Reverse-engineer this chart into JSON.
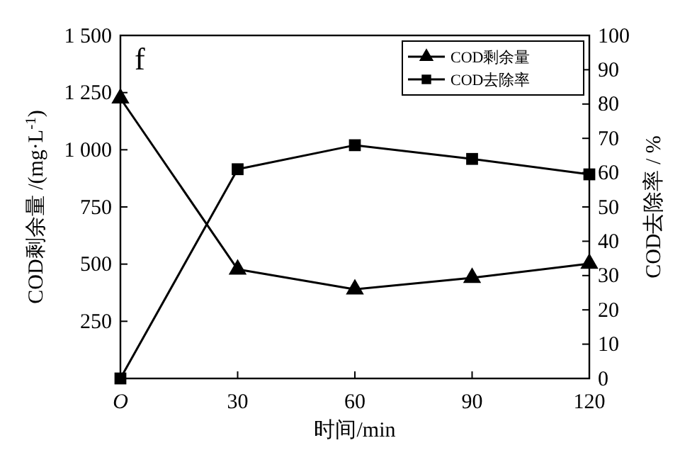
{
  "chart_data": {
    "type": "line",
    "xlabel": "时间/min",
    "ylabel": "COD剩余量 /(mg·L$^{-1}$)",
    "y2label": "COD去除率 / %",
    "annotations": [
      "f"
    ],
    "x": [
      0,
      30,
      60,
      90,
      120
    ],
    "xlim": [
      0,
      120
    ],
    "xticks": [
      {
        "value": 0,
        "label": "O"
      },
      30,
      60,
      90,
      120
    ],
    "ylim": [
      0,
      1500
    ],
    "yticks": [
      {
        "value": 250,
        "label": "250"
      },
      {
        "value": 500,
        "label": "500"
      },
      {
        "value": 750,
        "label": "750"
      },
      {
        "value": 1000,
        "label": "1 000"
      },
      {
        "value": 1250,
        "label": "1 250"
      },
      {
        "value": 1500,
        "label": "1 500"
      }
    ],
    "y2lim": [
      0,
      100
    ],
    "y2ticks": [
      0,
      10,
      20,
      30,
      40,
      50,
      60,
      70,
      80,
      90,
      100
    ],
    "legend": "top right",
    "grid": false,
    "line_style": "solid",
    "series": [
      {
        "name": "COD剩余量",
        "color": "#000000",
        "marker": "triangle",
        "values": [
          1225,
          477,
          390,
          440,
          502
        ]
      },
      {
        "name": "COD去除率",
        "color": "#000000",
        "marker": "square",
        "axis": "y2",
        "values": [
          0,
          61,
          68,
          64,
          59.5
        ]
      }
    ]
  }
}
